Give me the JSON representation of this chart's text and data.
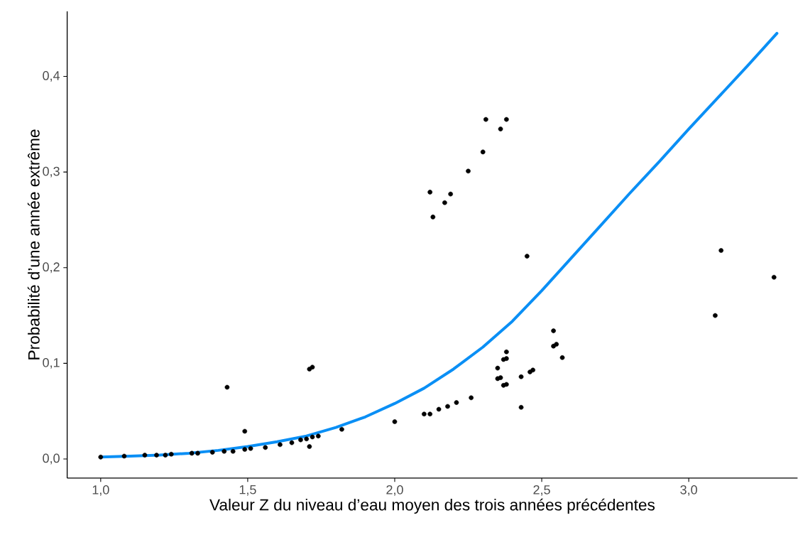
{
  "chart_data": {
    "type": "scatter",
    "xlabel": "Valeur Z du niveau d’eau moyen des trois années précédentes",
    "ylabel": "Probabilité d’une année extrême",
    "xlim": [
      0.886,
      3.37
    ],
    "ylim": [
      -0.02,
      0.468
    ],
    "xticks": [
      {
        "value": 1.0,
        "label": "1,0"
      },
      {
        "value": 1.5,
        "label": "1,5"
      },
      {
        "value": 2.0,
        "label": "2,0"
      },
      {
        "value": 2.5,
        "label": "2,5"
      },
      {
        "value": 3.0,
        "label": "3,0"
      }
    ],
    "yticks": [
      {
        "value": 0.0,
        "label": "0,0"
      },
      {
        "value": 0.1,
        "label": "0,1"
      },
      {
        "value": 0.2,
        "label": "0,2"
      },
      {
        "value": 0.3,
        "label": "0,3"
      },
      {
        "value": 0.4,
        "label": "0,4"
      }
    ],
    "grid": false,
    "series": [
      {
        "marker": "circle",
        "color": "#000000",
        "x": [
          1.0,
          1.08,
          1.15,
          1.19,
          1.22,
          1.24,
          1.31,
          1.33,
          1.38,
          1.42,
          1.45,
          1.49,
          1.51,
          1.56,
          1.61,
          1.65,
          1.68,
          1.7,
          1.71,
          1.72,
          1.74,
          1.82,
          2.0,
          2.1,
          2.12,
          2.15,
          2.18,
          2.21,
          2.26,
          2.35,
          2.36,
          2.35,
          2.37,
          2.38,
          2.37,
          2.38,
          2.38,
          2.43,
          2.43,
          2.46,
          2.47,
          2.54,
          2.55,
          2.54,
          2.57,
          1.43,
          1.49,
          1.71,
          1.72,
          2.31,
          2.38,
          2.36,
          2.3,
          2.25,
          2.12,
          2.19,
          2.17,
          2.13,
          2.45,
          3.11,
          3.29,
          3.09
        ],
        "values": [
          0.002,
          0.003,
          0.004,
          0.004,
          0.004,
          0.005,
          0.006,
          0.006,
          0.007,
          0.008,
          0.008,
          0.01,
          0.011,
          0.012,
          0.015,
          0.017,
          0.02,
          0.021,
          0.013,
          0.023,
          0.024,
          0.031,
          0.039,
          0.047,
          0.047,
          0.052,
          0.055,
          0.059,
          0.064,
          0.084,
          0.085,
          0.095,
          0.077,
          0.078,
          0.104,
          0.105,
          0.112,
          0.054,
          0.086,
          0.091,
          0.093,
          0.118,
          0.12,
          0.134,
          0.106,
          0.075,
          0.029,
          0.094,
          0.096,
          0.355,
          0.355,
          0.345,
          0.321,
          0.301,
          0.279,
          0.277,
          0.268,
          0.253,
          0.212,
          0.218,
          0.19,
          0.15
        ]
      },
      {
        "type": "line",
        "color": "#0a8ff5",
        "marker": "none",
        "line_style": "solid",
        "x": [
          1.0,
          1.1,
          1.2,
          1.3,
          1.4,
          1.5,
          1.6,
          1.7,
          1.8,
          1.9,
          2.0,
          2.1,
          2.2,
          2.3,
          2.4,
          2.5,
          2.6,
          2.7,
          2.8,
          2.9,
          3.0,
          3.1,
          3.2,
          3.3
        ],
        "values": [
          0.002,
          0.003,
          0.004,
          0.006,
          0.009,
          0.013,
          0.018,
          0.024,
          0.033,
          0.044,
          0.058,
          0.074,
          0.094,
          0.117,
          0.144,
          0.176,
          0.21,
          0.244,
          0.278,
          0.311,
          0.345,
          0.378,
          0.411,
          0.445
        ]
      }
    ]
  }
}
